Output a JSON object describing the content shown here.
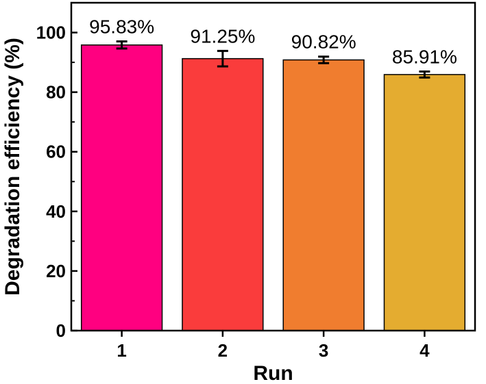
{
  "chart_data": {
    "type": "bar",
    "title": "",
    "xlabel": "Run",
    "ylabel": "Degradation efficiency (%)",
    "categories": [
      "1",
      "2",
      "3",
      "4"
    ],
    "values": [
      95.83,
      91.25,
      90.82,
      85.91
    ],
    "errors": [
      1.2,
      2.6,
      1.1,
      1.0
    ],
    "data_labels": [
      "95.83%",
      "91.25%",
      "90.82%",
      "85.91%"
    ],
    "bar_colors": [
      "#ff0080",
      "#fa3c3c",
      "#f07d2f",
      "#e4ac30"
    ],
    "ylim": [
      0,
      110
    ],
    "yticks": [
      0,
      20,
      40,
      60,
      80,
      100
    ],
    "ytick_labels": [
      "0",
      "20",
      "40",
      "60",
      "80",
      "100"
    ],
    "grid": false,
    "legend": false
  }
}
